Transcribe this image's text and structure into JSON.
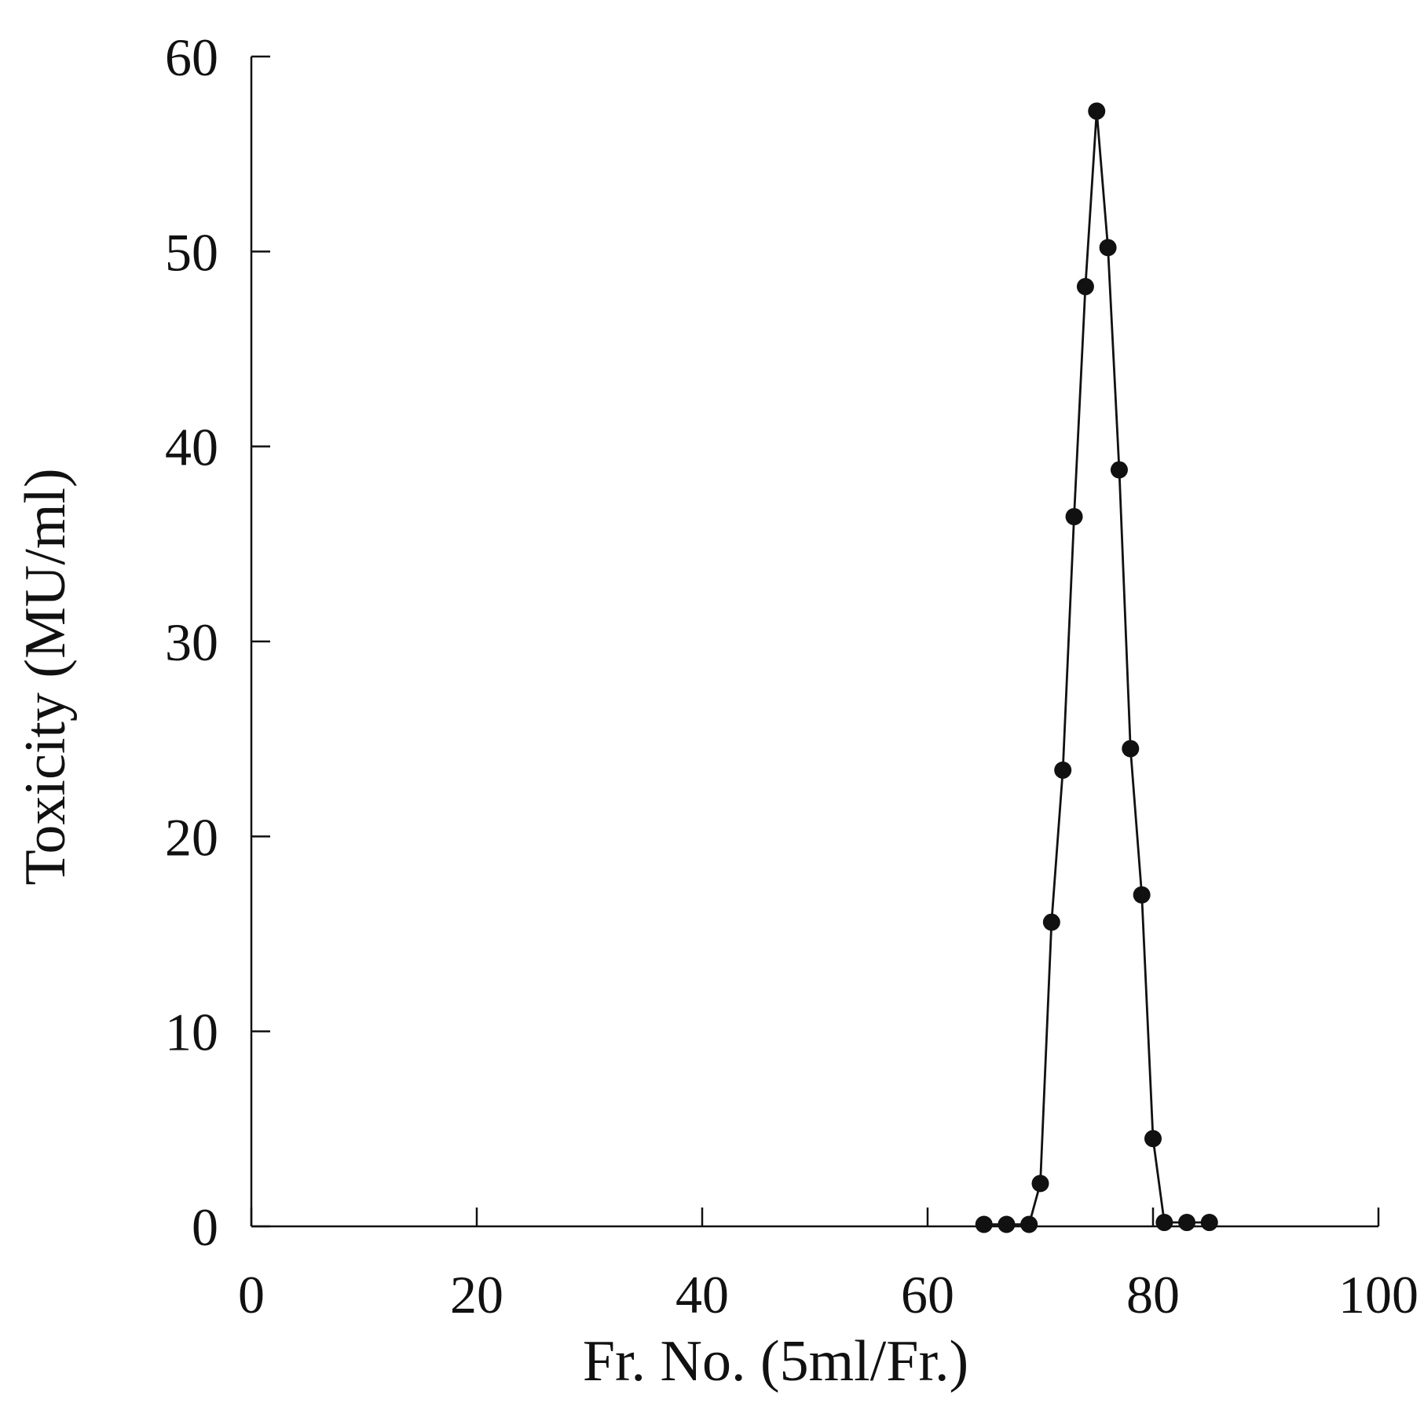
{
  "chart_data": {
    "type": "line",
    "title": "",
    "xlabel": "Fr. No. (5ml/Fr.)",
    "ylabel": "Toxicity (MU/ml)",
    "xlim": [
      0,
      100
    ],
    "ylim": [
      0,
      60
    ],
    "x_ticks": [
      0,
      20,
      40,
      60,
      80,
      100
    ],
    "y_ticks": [
      0,
      10,
      20,
      30,
      40,
      50,
      60
    ],
    "x_tick_labels": [
      "0",
      "20",
      "40",
      "60",
      "80",
      "100"
    ],
    "y_tick_labels": [
      "0",
      "10",
      "20",
      "30",
      "40",
      "50",
      "60"
    ],
    "grid": false,
    "legend": false,
    "colors": {
      "line": "#111111",
      "marker": "#111111",
      "axis": "#111111"
    },
    "series": [
      {
        "x": [
          65,
          67,
          69,
          70,
          71,
          72,
          73,
          74,
          75,
          76,
          77,
          78,
          79,
          80,
          81,
          83,
          85
        ],
        "values": [
          0.1,
          0.1,
          0.1,
          2.2,
          15.6,
          23.4,
          36.4,
          48.2,
          57.2,
          50.2,
          38.8,
          24.5,
          17.0,
          4.5,
          0.2,
          0.2,
          0.2
        ],
        "marker": "filled-circle"
      }
    ]
  }
}
